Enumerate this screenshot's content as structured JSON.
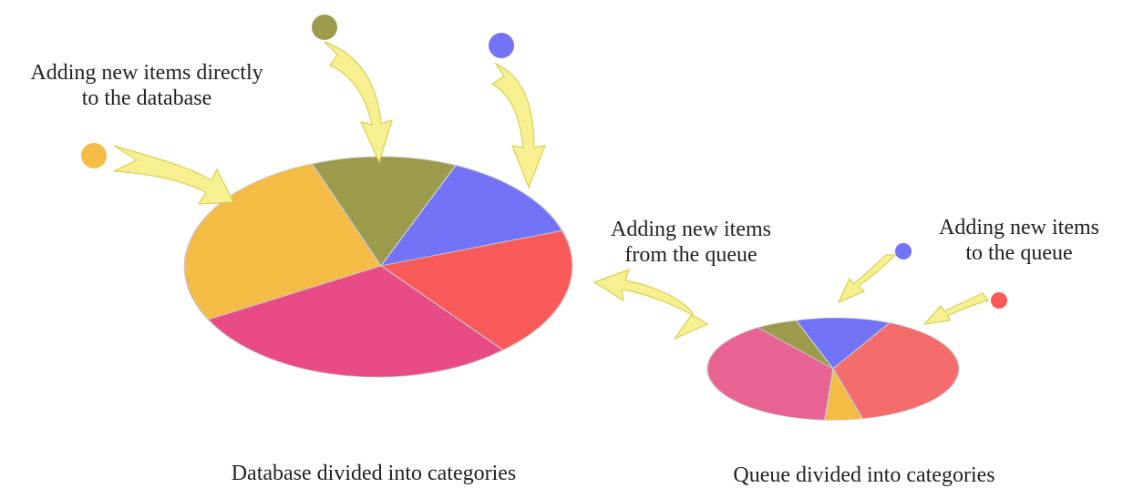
{
  "labels": {
    "direct_line1": "Adding new items directly",
    "direct_line2": "to the database",
    "from_queue_line1": "Adding new items",
    "from_queue_line2": "from the queue",
    "to_queue_line1": "Adding new items",
    "to_queue_line2": "to the queue",
    "database_caption": "Database divided into categories",
    "queue_caption": "Queue divided into categories"
  },
  "colors": {
    "orange": "#f4bc45",
    "olive": "#9c9b4c",
    "blue": "#7373f7",
    "red": "#f85a5a",
    "pink": "#e84b85",
    "queue_red": "#f46c6c",
    "queue_pink": "#e86394",
    "arrow_fill": "#f7f090"
  },
  "icons": [
    "arrow-curved-icon",
    "category-dot-icon"
  ]
}
